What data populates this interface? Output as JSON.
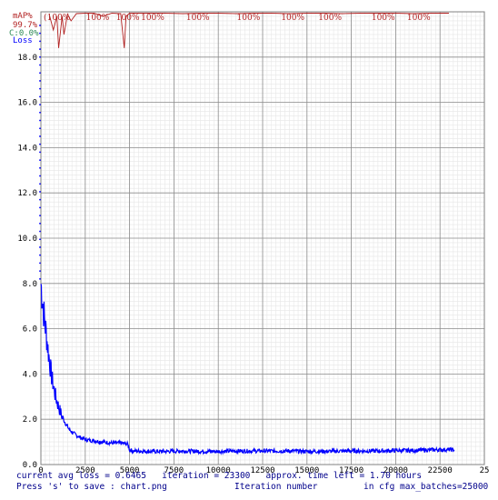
{
  "chart_data": {
    "type": "line",
    "y_ticks": [
      "0.0",
      "2.0",
      "4.0",
      "6.0",
      "8.0",
      "10.0",
      "12.0",
      "14.0",
      "16.0",
      "18.0"
    ],
    "x_ticks": [
      "0",
      "2500",
      "5000",
      "7500",
      "10000",
      "12500",
      "15000",
      "17500",
      "20000",
      "22500",
      "25"
    ],
    "xlim": [
      0,
      25000
    ],
    "ylim": [
      0,
      20
    ],
    "grid": true,
    "legend": {
      "map_title": "mAP%",
      "map_value": "99.7%",
      "c_value": "C:0.0%",
      "loss_title": "Loss",
      "map_color": "#b22222",
      "c_color": "#2e8b57",
      "loss_color": "#0000ff"
    },
    "loss_series": {
      "name": "Loss",
      "x": [
        0,
        50,
        100,
        150,
        200,
        300,
        400,
        500,
        600,
        700,
        800,
        900,
        1000,
        1200,
        1400,
        1600,
        1800,
        2000,
        2200,
        2500,
        3000,
        3500,
        4000,
        4500,
        4900,
        5000,
        5200,
        5500,
        6000,
        7000,
        8000,
        9000,
        10000,
        11000,
        12000,
        13000,
        14000,
        15000,
        16000,
        17000,
        18000,
        19000,
        20000,
        21000,
        22000,
        23000,
        23300
      ],
      "y": [
        8.0,
        7.6,
        7.2,
        6.8,
        6.4,
        5.8,
        5.1,
        4.5,
        3.9,
        3.5,
        3.1,
        2.8,
        2.55,
        2.1,
        1.8,
        1.55,
        1.4,
        1.3,
        1.2,
        1.1,
        1.05,
        1.0,
        0.95,
        0.95,
        0.9,
        0.65,
        0.6,
        0.6,
        0.58,
        0.58,
        0.6,
        0.58,
        0.58,
        0.6,
        0.6,
        0.6,
        0.6,
        0.58,
        0.58,
        0.6,
        0.6,
        0.6,
        0.62,
        0.62,
        0.65,
        0.66,
        0.65
      ]
    },
    "map_series": {
      "name": "mAP",
      "x": [
        500,
        700,
        900,
        1000,
        1200,
        1300,
        1500,
        1700,
        2000,
        2500,
        3000,
        3500,
        4000,
        4500,
        4700,
        4800,
        5000,
        5500,
        6000,
        7000,
        8000,
        9000,
        10000,
        11000,
        12000,
        13000,
        14000,
        15000,
        16000,
        17000,
        18000,
        19000,
        20000,
        21000,
        22000,
        23000
      ],
      "y": [
        99,
        96,
        99,
        92,
        99,
        95,
        99.5,
        98,
        99.6,
        99.7,
        99.7,
        99,
        99.7,
        99.6,
        92,
        99,
        99.7,
        99.7,
        99.7,
        99.7,
        99.6,
        99.7,
        99.7,
        99.6,
        99.7,
        99.7,
        99.6,
        99.7,
        99.7,
        99.6,
        99.7,
        99.7,
        99.7,
        99.6,
        99.7,
        99.7
      ]
    },
    "map_labels": [
      {
        "x": 1000,
        "text": "100%"
      },
      {
        "x": 3200,
        "text": "100%"
      },
      {
        "x": 4900,
        "text": "100%"
      },
      {
        "x": 6300,
        "text": "100%"
      },
      {
        "x": 8850,
        "text": "100%"
      },
      {
        "x": 11700,
        "text": "100%"
      },
      {
        "x": 14200,
        "text": "100%"
      },
      {
        "x": 16300,
        "text": "100%"
      },
      {
        "x": 19300,
        "text": "100%"
      },
      {
        "x": 21300,
        "text": "100%"
      }
    ],
    "map_label_prefix": "(",
    "status": {
      "line1": "current avg loss = 0.6465   iteration = 23300   approx. time left = 1.70 hours",
      "line2_left": "Press 's' to save : chart.png",
      "line2_mid": "Iteration number",
      "line2_right": "in cfg max_batches=25000"
    }
  }
}
